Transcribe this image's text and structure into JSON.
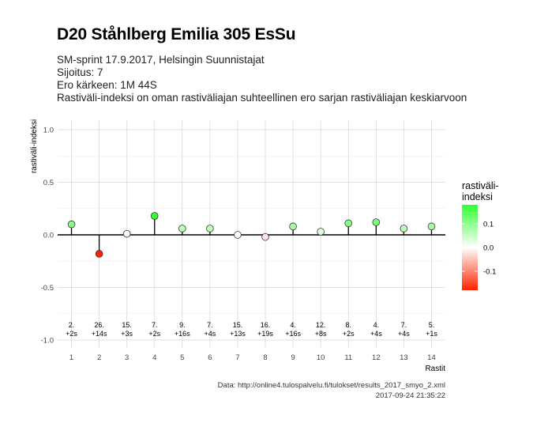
{
  "header": {
    "title": "D20 Ståhlberg Emilia 305 EsSu",
    "line1": "SM-sprint 17.9.2017, Helsingin Suunnistajat",
    "line2": "Sijoitus: 7",
    "line3": "Ero kärkeen: 1M 44S",
    "line4": "Rastiväli-indeksi on oman rastiväliajan suhteellinen ero sarjan rastiväliajan keskiarvoon"
  },
  "caption": {
    "source": "Data: http://online4.tulospalvelu.fi/tulokset/results_2017_smyo_2.xml",
    "timestamp": "2017-09-24 21:35:22"
  },
  "chart_data": {
    "type": "scatter",
    "style": "lollipop",
    "xlabel": "Rastit",
    "ylabel": "rastiväli-indeksi",
    "x": [
      1,
      2,
      3,
      4,
      5,
      6,
      7,
      8,
      9,
      10,
      11,
      12,
      13,
      14
    ],
    "y": [
      0.1,
      -0.18,
      0.01,
      0.18,
      0.06,
      0.06,
      0.0,
      -0.02,
      0.08,
      0.03,
      0.11,
      0.12,
      0.06,
      0.08
    ],
    "rank_labels": [
      "2.",
      "26.",
      "15.",
      "7.",
      "9.",
      "7.",
      "15.",
      "16.",
      "4.",
      "12.",
      "8.",
      "4.",
      "7.",
      "5."
    ],
    "time_labels": [
      "+2s",
      "+14s",
      "+3s",
      "+2s",
      "+16s",
      "+4s",
      "+13s",
      "+19s",
      "+16s",
      "+8s",
      "+2s",
      "+4s",
      "+4s",
      "+1s"
    ],
    "xlim": [
      0.5,
      14.5
    ],
    "ylim": [
      -1.0,
      1.0
    ],
    "yticks": [
      -1.0,
      -0.5,
      0.0,
      0.5,
      1.0
    ],
    "ytick_labels": [
      "-1.0",
      "-0.5",
      "0.0",
      "0.5",
      "1.0"
    ],
    "xticks": [
      1,
      2,
      3,
      4,
      5,
      6,
      7,
      8,
      9,
      10,
      11,
      12,
      13,
      14
    ],
    "grid": true,
    "legend": {
      "title_line1": "rastiväli-",
      "title_line2": "indeksi",
      "placement": "right",
      "breaks": [
        0.1,
        0.0,
        -0.1
      ],
      "break_labels": [
        "0.1",
        "0.0",
        "-0.1"
      ],
      "range": [
        -0.18,
        0.18
      ],
      "colors": {
        "high": "#33ff33",
        "mid": "#ffffff",
        "low": "#ff2200"
      }
    }
  }
}
